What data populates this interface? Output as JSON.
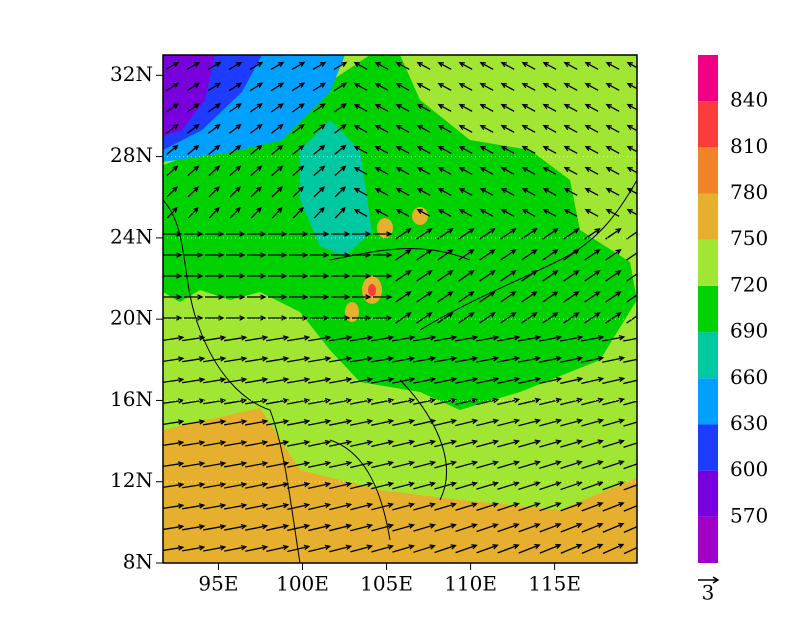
{
  "map": {
    "lon_ticks": [
      {
        "value": 95,
        "label": "95E"
      },
      {
        "value": 100,
        "label": "100E"
      },
      {
        "value": 105,
        "label": "105E"
      },
      {
        "value": 110,
        "label": "110E"
      },
      {
        "value": 115,
        "label": "115E"
      }
    ],
    "lat_ticks": [
      {
        "value": 8,
        "label": "8N"
      },
      {
        "value": 12,
        "label": "12N"
      },
      {
        "value": 16,
        "label": "16N"
      },
      {
        "value": 20,
        "label": "20N"
      },
      {
        "value": 24,
        "label": "24N"
      },
      {
        "value": 28,
        "label": "28N"
      },
      {
        "value": 32,
        "label": "32N"
      }
    ],
    "lonlim": [
      91.7,
      119.9
    ],
    "latlim": [
      8,
      33
    ],
    "colorbar": {
      "levels": [
        570,
        600,
        630,
        660,
        690,
        720,
        750,
        780,
        810,
        840
      ],
      "colors": [
        "#a000c8",
        "#7800dc",
        "#1e3cff",
        "#00a0ff",
        "#00c8a0",
        "#00d200",
        "#a0e632",
        "#e6af2d",
        "#f08228",
        "#fa3c3c",
        "#f00082"
      ]
    },
    "vector_reference": "3"
  }
}
